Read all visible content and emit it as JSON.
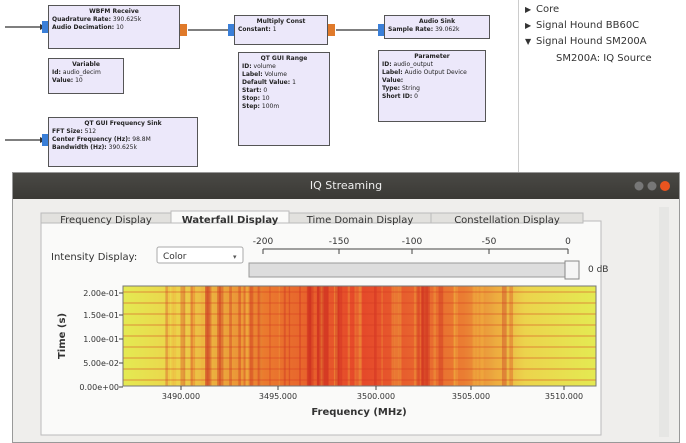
{
  "flowgraph": {
    "blocks": [
      {
        "title": "WBFM Receive",
        "params": [
          {
            "k": "Quadrature Rate:",
            "v": "390.625k"
          },
          {
            "k": "Audio Decimation:",
            "v": "10"
          }
        ]
      },
      {
        "title": "Multiply Const",
        "params": [
          {
            "k": "Constant:",
            "v": "1"
          }
        ]
      },
      {
        "title": "Audio Sink",
        "params": [
          {
            "k": "Sample Rate:",
            "v": "39.062k"
          }
        ]
      },
      {
        "title": "Variable",
        "params": [
          {
            "k": "Id:",
            "v": "audio_decim"
          },
          {
            "k": "Value:",
            "v": "10"
          }
        ]
      },
      {
        "title": "QT GUI Range",
        "params": [
          {
            "k": "ID:",
            "v": "volume"
          },
          {
            "k": "Label:",
            "v": "Volume"
          },
          {
            "k": "Default Value:",
            "v": "1"
          },
          {
            "k": "Start:",
            "v": "0"
          },
          {
            "k": "Stop:",
            "v": "10"
          },
          {
            "k": "Step:",
            "v": "100m"
          }
        ]
      },
      {
        "title": "Parameter",
        "params": [
          {
            "k": "ID:",
            "v": "audio_output"
          },
          {
            "k": "Label:",
            "v": "Audio Output Device"
          },
          {
            "k": "Value:"
          },
          {
            "k": "Type:",
            "v": "String"
          },
          {
            "k": "Short ID:",
            "v": "0"
          }
        ]
      },
      {
        "title": "QT GUI Frequency Sink",
        "params": [
          {
            "k": "FFT Size:",
            "v": "512"
          },
          {
            "k": "Center Frequency (Hz):",
            "v": "98.8M"
          },
          {
            "k": "Bandwidth (Hz):",
            "v": "390.625k"
          }
        ]
      }
    ]
  },
  "tree": [
    "Core",
    "Signal Hound BB60C",
    "Signal Hound SM200A",
    "SM200A: IQ Source"
  ],
  "window": {
    "title": "IQ Streaming",
    "tabs": [
      "Frequency Display",
      "Waterfall Display",
      "Time Domain Display",
      "Constellation Display"
    ],
    "intensity_label": "Intensity Display:",
    "colormap": "Color",
    "scale_ticks": [
      "-200",
      "-150",
      "-100",
      "-50",
      "0"
    ],
    "db_label": "0 dB",
    "plot": {
      "ylabel": "Time (s)",
      "xlabel": "Frequency (MHz)",
      "yticks": [
        "2.00e-01",
        "1.50e-01",
        "1.00e-01",
        "5.00e-02",
        "0.00e+00"
      ],
      "xticks": [
        "3490.000",
        "3495.000",
        "3500.000",
        "3505.000",
        "3510.000"
      ]
    }
  }
}
